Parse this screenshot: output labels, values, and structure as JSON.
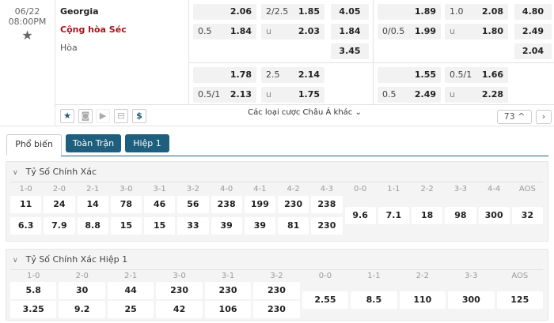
{
  "match": {
    "date": "06/22",
    "time": "08:00PM",
    "home": "Georgia",
    "away": "Cộng hòa Séc",
    "draw": "Hòa",
    "ft": {
      "hdp": [
        {
          "line": "",
          "odds": "2.06"
        },
        {
          "line": "0.5",
          "odds": "1.84"
        }
      ],
      "ou": [
        {
          "line": "2/2.5",
          "odds": "1.85"
        },
        {
          "line": "u",
          "odds": "2.03"
        }
      ],
      "x12": [
        "4.05",
        "1.84",
        "3.45"
      ],
      "hdp2": [
        {
          "line": "",
          "odds": "1.78"
        },
        {
          "line": "0.5/1",
          "odds": "2.13"
        }
      ],
      "ou2": [
        {
          "line": "2.5",
          "odds": "2.14"
        },
        {
          "line": "u",
          "odds": "1.75"
        }
      ]
    },
    "h1": {
      "hdp": [
        {
          "line": "",
          "odds": "1.89"
        },
        {
          "line": "0/0.5",
          "odds": "1.99"
        }
      ],
      "ou": [
        {
          "line": "1.0",
          "odds": "2.08"
        },
        {
          "line": "u",
          "odds": "1.80"
        }
      ],
      "x12": [
        "4.80",
        "2.49",
        "2.04"
      ],
      "hdp2": [
        {
          "line": "",
          "odds": "1.55"
        },
        {
          "line": "0.5",
          "odds": "2.49"
        }
      ],
      "ou2": [
        {
          "line": "0.5/1",
          "odds": "1.66"
        },
        {
          "line": "u",
          "odds": "2.28"
        }
      ]
    },
    "more_bets": "Các loại cược Châu Á khác",
    "market_count": "73",
    "icons": [
      "star-icon",
      "jersey-icon",
      "play-icon",
      "stats-icon",
      "dollar-icon"
    ]
  },
  "tabs": [
    {
      "label": "Phổ biến",
      "active": true
    },
    {
      "label": "Toàn Trận"
    },
    {
      "label": "Hiệp 1"
    }
  ],
  "sections": [
    {
      "title": "Tỷ Số Chính Xác",
      "labels": [
        "1-0",
        "2-0",
        "2-1",
        "3-0",
        "3-1",
        "3-2",
        "4-0",
        "4-1",
        "4-2",
        "4-3",
        "0-0",
        "1-1",
        "2-2",
        "3-3",
        "4-4",
        "AOS"
      ],
      "home": [
        "11",
        "24",
        "14",
        "78",
        "46",
        "56",
        "238",
        "199",
        "230",
        "238"
      ],
      "away": [
        "6.3",
        "7.9",
        "8.8",
        "15",
        "15",
        "33",
        "39",
        "39",
        "81",
        "230"
      ],
      "draws": [
        "9.6",
        "7.1",
        "18",
        "98",
        "300",
        "32"
      ]
    },
    {
      "title": "Tỷ Số Chính Xác Hiệp 1",
      "labels": [
        "1-0",
        "2-0",
        "2-1",
        "3-0",
        "3-1",
        "3-2",
        "0-0",
        "1-1",
        "2-2",
        "3-3",
        "AOS"
      ],
      "home": [
        "5.8",
        "30",
        "44",
        "230",
        "230",
        "230"
      ],
      "away": [
        "3.25",
        "9.2",
        "25",
        "42",
        "106",
        "230"
      ],
      "draws": [
        "2.55",
        "8.5",
        "110",
        "300",
        "125"
      ]
    }
  ],
  "colors": {
    "accent": "#1d5f7c",
    "away_team": "#a5151b"
  }
}
